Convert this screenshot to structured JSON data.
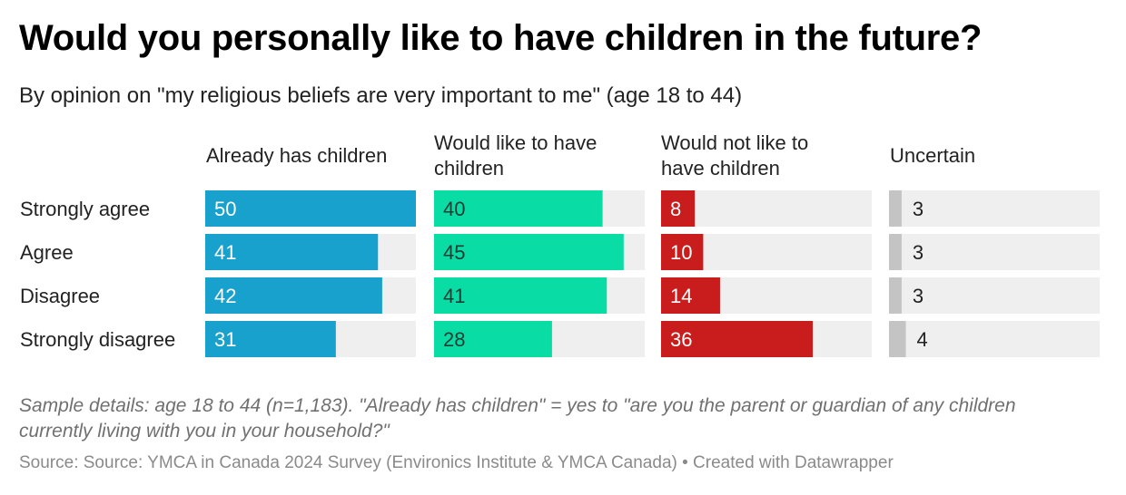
{
  "header": {
    "title": "Would you personally like to have children in the future?",
    "subtitle": "By opinion on \"my religious beliefs are very important to me\" (age 18 to 44)"
  },
  "footer": {
    "notes": "Sample details: age 18 to 44 (n=1,183). \"Already has children\" = yes to \"are you the parent or guardian of any children currently living with you in your household?\"",
    "source": "Source: Source: YMCA in Canada 2024 Survey (Environics Institute & YMCA Canada) • Created with Datawrapper"
  },
  "chart_data": {
    "type": "bar",
    "title": "Would you personally like to have children in the future?",
    "subtitle": "By opinion on \"my religious beliefs are very important to me\" (age 18 to 44)",
    "categories": [
      "Strongly agree",
      "Agree",
      "Disagree",
      "Strongly disagree"
    ],
    "xlim": [
      0,
      50
    ],
    "series": [
      {
        "name": "Already has children",
        "header_lines": [
          "Already has children"
        ],
        "color": "#18a1cd",
        "values": [
          50,
          41,
          42,
          31
        ]
      },
      {
        "name": "Would like to have children",
        "header_lines": [
          "Would like to have",
          "children"
        ],
        "color": "#09dca4",
        "values": [
          40,
          45,
          41,
          28
        ]
      },
      {
        "name": "Would not like to have children",
        "header_lines": [
          "Would not like to",
          "have children"
        ],
        "color": "#c91d1d",
        "values": [
          8,
          10,
          14,
          36
        ]
      },
      {
        "name": "Uncertain",
        "header_lines": [
          "Uncertain"
        ],
        "color": "#c4c4c4",
        "values": [
          3,
          3,
          3,
          4
        ]
      }
    ],
    "track_color": "#efefef"
  }
}
